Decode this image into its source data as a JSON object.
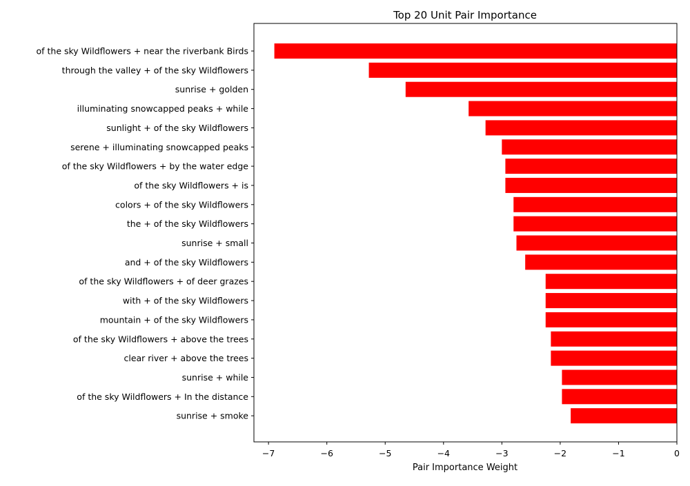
{
  "chart_data": {
    "type": "bar",
    "orientation": "horizontal",
    "title": "Top 20 Unit Pair Importance",
    "xlabel": "Pair Importance Weight",
    "ylabel": "",
    "xlim": [
      -7.25,
      0
    ],
    "xticks": [
      -7,
      -6,
      -5,
      -4,
      -3,
      -2,
      -1,
      0
    ],
    "xtick_labels": [
      "−7",
      "−6",
      "−5",
      "−4",
      "−3",
      "−2",
      "−1",
      "0"
    ],
    "bar_color": "#ff0000",
    "grid": false,
    "categories": [
      "of the sky Wildflowers + near the riverbank Birds",
      "through the valley + of the sky Wildflowers",
      "sunrise + golden",
      "illuminating snowcapped peaks + while",
      "sunlight + of the sky Wildflowers",
      "serene + illuminating snowcapped peaks",
      "of the sky Wildflowers + by the water edge",
      "of the sky Wildflowers + is",
      "colors + of the sky Wildflowers",
      "the + of the sky Wildflowers",
      "sunrise + small",
      "and + of the sky Wildflowers",
      "of the sky Wildflowers + of deer grazes",
      "with + of the sky Wildflowers",
      "mountain + of the sky Wildflowers",
      "of the sky Wildflowers + above the trees",
      "clear river + above the trees",
      "sunrise + while",
      "of the sky Wildflowers + In the distance",
      "sunrise + smoke"
    ],
    "values": [
      -6.9,
      -5.28,
      -4.65,
      -3.57,
      -3.28,
      -3.0,
      -2.94,
      -2.94,
      -2.8,
      -2.8,
      -2.75,
      -2.6,
      -2.25,
      -2.25,
      -2.25,
      -2.16,
      -2.16,
      -1.97,
      -1.97,
      -1.82
    ]
  }
}
